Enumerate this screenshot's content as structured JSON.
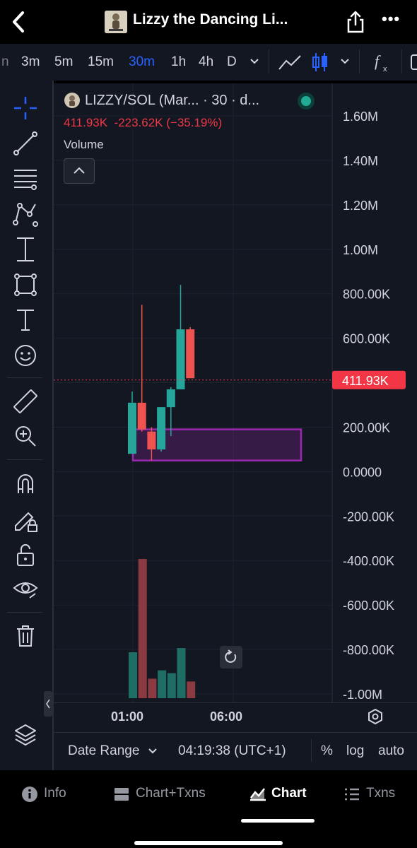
{
  "header": {
    "title": "Lizzy the Dancing Li...",
    "back_icon": "chevron-left-icon",
    "share_icon": "share-icon",
    "more_label": "•••"
  },
  "timeframes": {
    "items": [
      {
        "label": "n"
      },
      {
        "label": "3m"
      },
      {
        "label": "5m"
      },
      {
        "label": "15m"
      },
      {
        "label": "30m",
        "active": true
      },
      {
        "label": "1h"
      },
      {
        "label": "4h"
      },
      {
        "label": "D"
      }
    ]
  },
  "legend": {
    "symbol": "LIZZY/SOL (Mar... · 30 · d...",
    "stats": "411.93K  -223.62K (−35.19%)",
    "volume_label": "Volume"
  },
  "chart_data": {
    "type": "candlestick",
    "y_ticks": [
      "1.60M",
      "1.40M",
      "1.20M",
      "1.00M",
      "800.00K",
      "600.00K",
      "400.00K",
      "200.00K",
      "0.0000",
      "-200.00K",
      "-400.00K",
      "-600.00K",
      "-800.00K",
      "-1.00M"
    ],
    "y_tick_values": [
      1600000,
      1400000,
      1200000,
      1000000,
      800000,
      600000,
      400000,
      200000,
      0,
      -200000,
      -400000,
      -600000,
      -800000,
      -1000000
    ],
    "ylim": [
      -1000000,
      1600000
    ],
    "x_ticks": [
      "01:00",
      "06:00"
    ],
    "last_price_label": "411.93K",
    "last_price": 411930,
    "candles": [
      {
        "o": 80000,
        "h": 360000,
        "l": 80000,
        "c": 310000,
        "bull": true
      },
      {
        "o": 310000,
        "h": 750000,
        "l": 180000,
        "c": 190000,
        "bull": false
      },
      {
        "o": 180000,
        "h": 200000,
        "l": 50000,
        "c": 100000,
        "bull": false
      },
      {
        "o": 100000,
        "h": 290000,
        "l": 90000,
        "c": 290000,
        "bull": true
      },
      {
        "o": 290000,
        "h": 380000,
        "l": 160000,
        "c": 370000,
        "bull": true
      },
      {
        "o": 370000,
        "h": 840000,
        "l": 370000,
        "c": 640000,
        "bull": true
      },
      {
        "o": 640000,
        "h": 650000,
        "l": 420000,
        "c": 420000,
        "bull": false
      }
    ],
    "volume_relative": [
      0.33,
      1.0,
      0.14,
      0.2,
      0.18,
      0.36,
      0.12
    ],
    "zone": {
      "from": 50000,
      "to": 190000
    },
    "colors": {
      "up": "#26a69a",
      "down": "#ef5350",
      "zone": "#9c27b0",
      "price_tag": "#f23645"
    }
  },
  "bottom_bar": {
    "date_range": "Date Range",
    "time": "04:19:38 (UTC+1)",
    "percent": "%",
    "log": "log",
    "auto": "auto"
  },
  "tabs": [
    {
      "label": "Info",
      "icon": "info-icon"
    },
    {
      "label": "Chart+Txns",
      "icon": "split-view-icon"
    },
    {
      "label": "Chart",
      "icon": "chart-icon",
      "active": true
    },
    {
      "label": "Txns",
      "icon": "list-icon"
    }
  ]
}
